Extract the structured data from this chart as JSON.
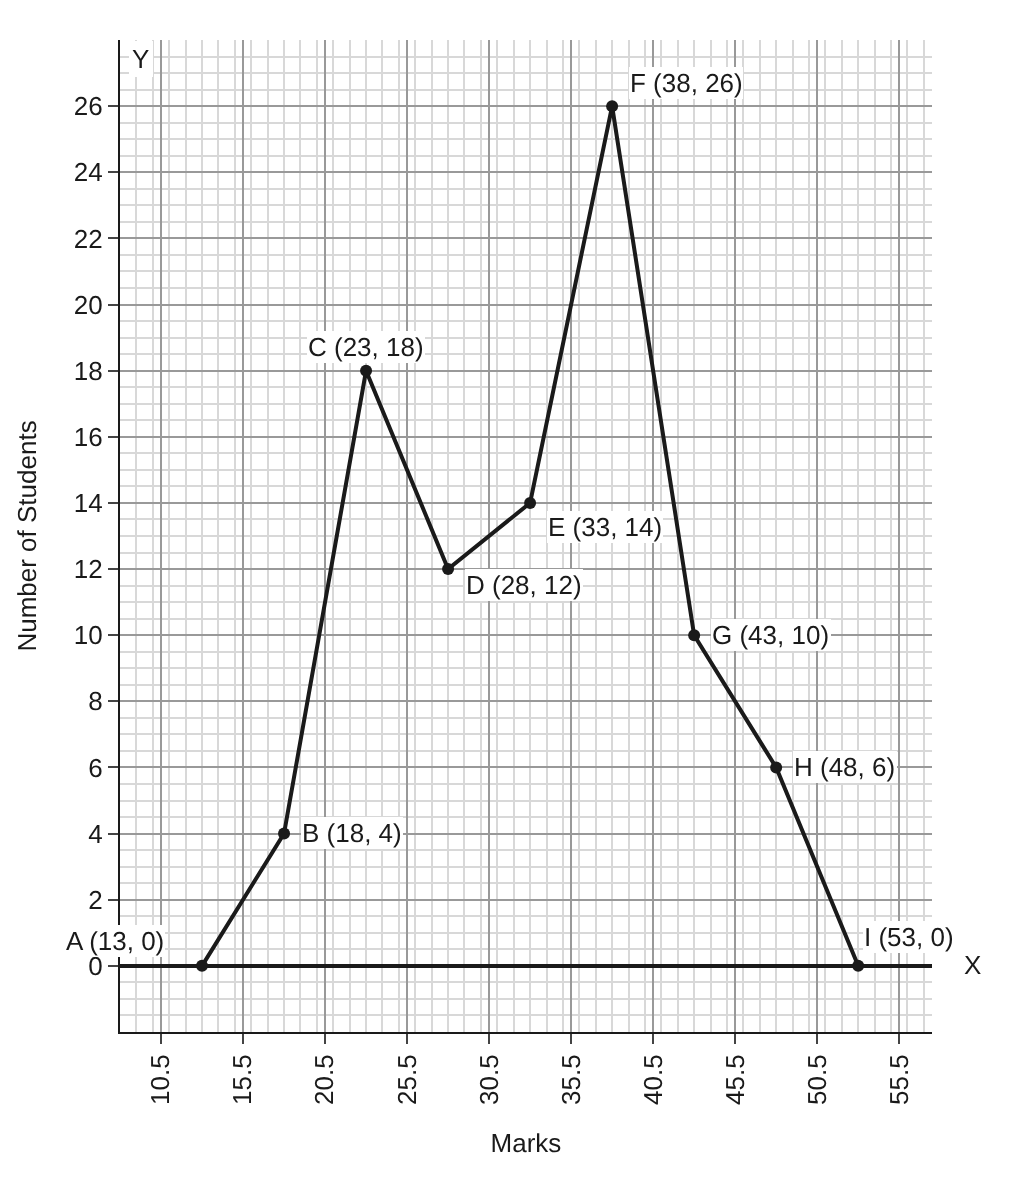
{
  "chart_data": {
    "type": "line",
    "xlabel": "Marks",
    "ylabel": "Number of Students",
    "x": [
      13,
      18,
      23,
      28,
      33,
      38,
      43,
      48,
      53
    ],
    "series": [
      {
        "color": "#1a1a1a",
        "values": [
          0,
          4,
          18,
          12,
          14,
          26,
          10,
          6,
          0
        ]
      }
    ],
    "xlim": [
      8,
      57.5
    ],
    "xticks": [
      10.5,
      15.5,
      20.5,
      25.5,
      30.5,
      35.5,
      40.5,
      45.5,
      50.5,
      55.5
    ],
    "ylim": [
      -2,
      28
    ],
    "yticks": [
      0,
      2,
      4,
      6,
      8,
      10,
      12,
      14,
      16,
      18,
      20,
      22,
      24,
      26
    ],
    "grid": true,
    "marker": "circle",
    "line_style": "solid",
    "legend": false,
    "annotations": [
      {
        "text": "A (13, 0)",
        "x": 13,
        "y": 0
      },
      {
        "text": "B (18, 4)",
        "x": 18,
        "y": 4
      },
      {
        "text": "C (23, 18)",
        "x": 23,
        "y": 18
      },
      {
        "text": "D (28, 12)",
        "x": 28,
        "y": 12
      },
      {
        "text": "E (33, 14)",
        "x": 33,
        "y": 14
      },
      {
        "text": "F (38, 26)",
        "x": 38,
        "y": 26
      },
      {
        "text": "G (43, 10)",
        "x": 43,
        "y": 10
      },
      {
        "text": "H (48, 6)",
        "x": 48,
        "y": 6
      },
      {
        "text": "I (53, 0)",
        "x": 53,
        "y": 0
      },
      "X",
      "Y"
    ]
  }
}
